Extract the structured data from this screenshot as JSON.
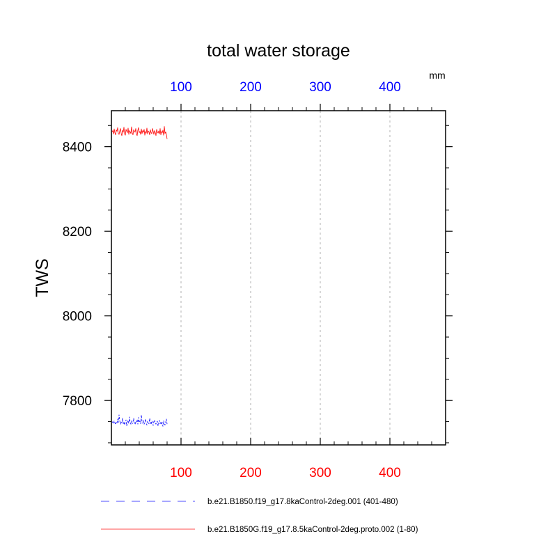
{
  "chart_data": {
    "type": "line",
    "title": "total water storage",
    "ylabel": "TWS",
    "units_label": "mm",
    "xlim": [
      0,
      480
    ],
    "ylim": [
      7695,
      8485
    ],
    "x_major_ticks": [
      100,
      200,
      300,
      400
    ],
    "x_minor_step": 20,
    "y_major_ticks": [
      7800,
      8000,
      8200,
      8400
    ],
    "y_minor_step": 50,
    "top_tick_color": "#0000ff",
    "bottom_tick_color": "#ff0000",
    "grid": "vertical dashed at major x ticks",
    "legend_position": "bottom",
    "series": [
      {
        "name": "b.e21.B1850.f19_g17.8kaControl-2deg.001 (401-480)",
        "color": "#0000ff",
        "dash": "dashed",
        "x": [
          1,
          2,
          3,
          4,
          5,
          6,
          7,
          8,
          9,
          10,
          11,
          12,
          13,
          14,
          15,
          16,
          17,
          18,
          19,
          20,
          21,
          22,
          23,
          24,
          25,
          26,
          27,
          28,
          29,
          30,
          31,
          32,
          33,
          34,
          35,
          36,
          37,
          38,
          39,
          40,
          41,
          42,
          43,
          44,
          45,
          46,
          47,
          48,
          49,
          50,
          51,
          52,
          53,
          54,
          55,
          56,
          57,
          58,
          59,
          60,
          61,
          62,
          63,
          64,
          65,
          66,
          67,
          68,
          69,
          70,
          71,
          72,
          73,
          74,
          75,
          76,
          77,
          78,
          79,
          80
        ],
        "y": [
          7750,
          7748,
          7745,
          7752,
          7747,
          7743,
          7749,
          7746,
          7756,
          7748,
          7766,
          7752,
          7744,
          7750,
          7747,
          7758,
          7745,
          7750,
          7742,
          7748,
          7754,
          7740,
          7749,
          7753,
          7746,
          7761,
          7748,
          7744,
          7752,
          7745,
          7750,
          7758,
          7747,
          7743,
          7751,
          7749,
          7755,
          7744,
          7760,
          7748,
          7752,
          7745,
          7766,
          7750,
          7746,
          7753,
          7744,
          7749,
          7756,
          7747,
          7742,
          7751,
          7748,
          7745,
          7758,
          7749,
          7743,
          7752,
          7747,
          7741,
          7750,
          7754,
          7746,
          7744,
          7749,
          7751,
          7740,
          7747,
          7753,
          7745,
          7750,
          7743,
          7748,
          7739,
          7752,
          7746,
          7742,
          7749,
          7756,
          7744
        ]
      },
      {
        "name": "b.e21.B1850G.f19_g17.8.5kaControl-2deg.proto.002 (1-80)",
        "color": "#ff0000",
        "dash": "solid",
        "x": [
          1,
          2,
          3,
          4,
          5,
          6,
          7,
          8,
          9,
          10,
          11,
          12,
          13,
          14,
          15,
          16,
          17,
          18,
          19,
          20,
          21,
          22,
          23,
          24,
          25,
          26,
          27,
          28,
          29,
          30,
          31,
          32,
          33,
          34,
          35,
          36,
          37,
          38,
          39,
          40,
          41,
          42,
          43,
          44,
          45,
          46,
          47,
          48,
          49,
          50,
          51,
          52,
          53,
          54,
          55,
          56,
          57,
          58,
          59,
          60,
          61,
          62,
          63,
          64,
          65,
          66,
          67,
          68,
          69,
          70,
          71,
          72,
          73,
          74,
          75,
          76,
          77,
          78,
          79,
          80
        ],
        "y": [
          8435,
          8438,
          8430,
          8442,
          8433,
          8428,
          8440,
          8436,
          8445,
          8431,
          8429,
          8437,
          8443,
          8432,
          8426,
          8439,
          8434,
          8446,
          8430,
          8427,
          8441,
          8436,
          8433,
          8444,
          8429,
          8438,
          8435,
          8431,
          8447,
          8432,
          8428,
          8440,
          8437,
          8434,
          8443,
          8430,
          8426,
          8439,
          8445,
          8433,
          8436,
          8429,
          8442,
          8431,
          8438,
          8434,
          8441,
          8427,
          8436,
          8432,
          8444,
          8430,
          8437,
          8435,
          8428,
          8440,
          8433,
          8431,
          8443,
          8436,
          8429,
          8438,
          8434,
          8426,
          8441,
          8435,
          8432,
          8437,
          8430,
          8443,
          8428,
          8436,
          8433,
          8439,
          8427,
          8448,
          8431,
          8435,
          8429,
          8418
        ]
      }
    ]
  }
}
